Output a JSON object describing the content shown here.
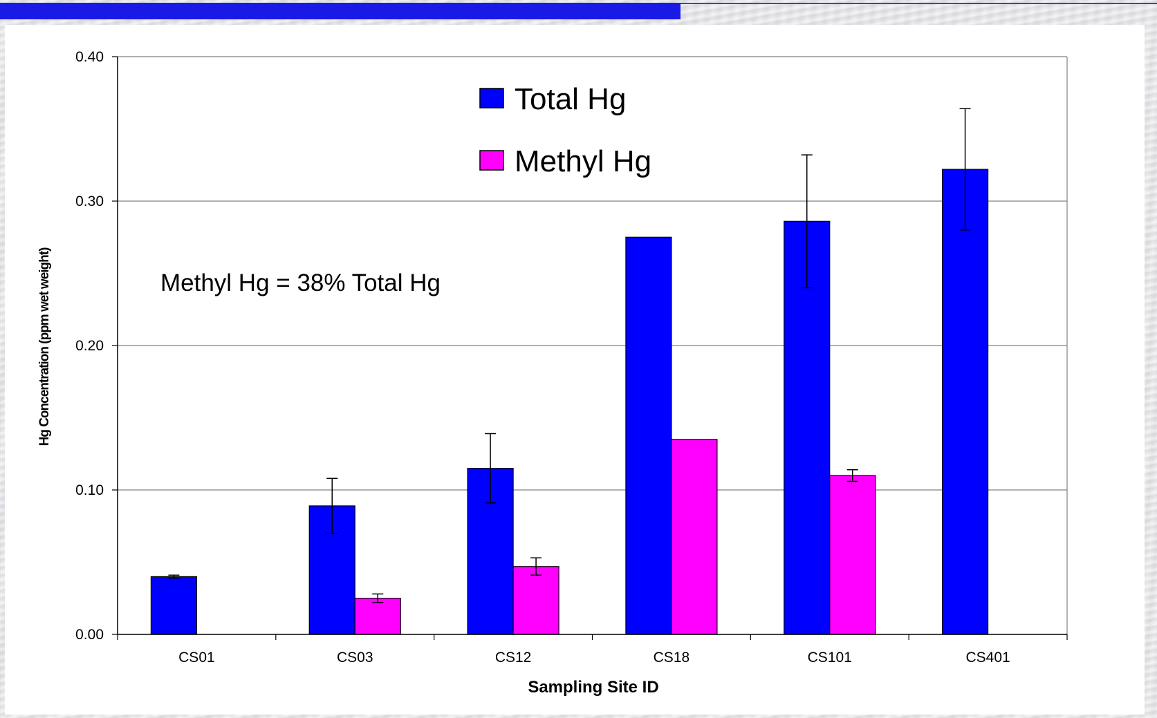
{
  "colors": {
    "title_bar": "#1a1ae6",
    "total_hg": "#0000ff",
    "methyl_hg": "#ff00ff",
    "gridline": "#808080",
    "panel": "#ffffff"
  },
  "chart_data": {
    "type": "bar",
    "categories": [
      "CS01",
      "CS03",
      "CS12",
      "CS18",
      "CS101",
      "CS401"
    ],
    "series": [
      {
        "name": "Total Hg",
        "color": "#0000ff",
        "values": [
          0.04,
          0.089,
          0.115,
          0.275,
          0.286,
          0.322
        ],
        "error_bars": [
          0.001,
          0.019,
          0.024,
          null,
          0.046,
          0.042
        ]
      },
      {
        "name": "Methyl Hg",
        "color": "#ff00ff",
        "values": [
          null,
          0.025,
          0.047,
          0.135,
          0.11,
          null
        ],
        "error_bars": [
          null,
          0.003,
          0.006,
          null,
          0.004,
          null
        ]
      }
    ],
    "xlabel": "Sampling Site ID",
    "ylabel": "Hg Concentration (ppm wet weight)",
    "ylim": [
      0,
      0.4
    ],
    "yticks": [
      "0.00",
      "0.10",
      "0.20",
      "0.30",
      "0.40"
    ],
    "grid": true,
    "legend_position": "top-center",
    "annotation": "Methyl Hg = 38% Total Hg"
  }
}
